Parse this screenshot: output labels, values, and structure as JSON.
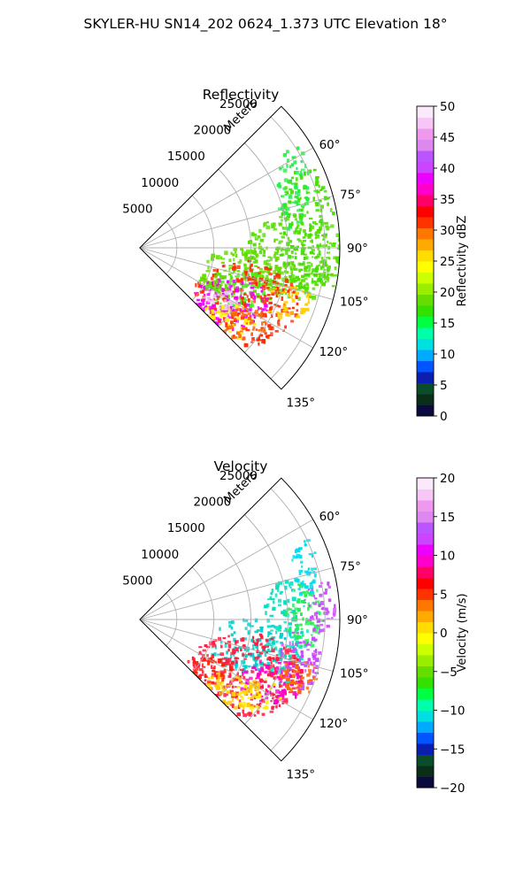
{
  "figure": {
    "suptitle": "SKYLER-HU  SN14_202  0624_1.373 UTC Elevation 18°"
  },
  "chart_data": [
    {
      "type": "polar-sector",
      "title": "Reflectivity",
      "radial_label": "Meters",
      "radial_ticks": [
        5000,
        10000,
        15000,
        20000,
        25000
      ],
      "radial_tick_labels": [
        "5000",
        "10000",
        "15000",
        "20000",
        "25000"
      ],
      "r_max": 27000,
      "theta_range_deg": [
        45,
        135
      ],
      "theta_ticks": [
        "60°",
        "75°",
        "90°",
        "105°",
        "120°",
        "135°"
      ],
      "grid": true,
      "colorbar": {
        "label": "Reflectivity dBZ",
        "range": [
          0,
          50
        ],
        "ticks": [
          "0",
          "5",
          "10",
          "15",
          "20",
          "25",
          "30",
          "35",
          "40",
          "45",
          "50"
        ],
        "colors": [
          "#0a0a3c",
          "#0b2e18",
          "#0a4d2a",
          "#0a1fb0",
          "#0055ff",
          "#00aaff",
          "#00e0e0",
          "#00ffaa",
          "#00ff40",
          "#33e000",
          "#66dd00",
          "#99ee00",
          "#ccff00",
          "#ffff00",
          "#ffdd00",
          "#ffaa00",
          "#ff7700",
          "#ff3300",
          "#ff0000",
          "#ff0066",
          "#ff00cc",
          "#ee00ff",
          "#cc44ff",
          "#bb55ff",
          "#dd88ee",
          "#ee99ee",
          "#f6c6f6",
          "#fbe8fb"
        ]
      }
    },
    {
      "type": "polar-sector",
      "title": "Velocity",
      "radial_label": "Meters",
      "radial_ticks": [
        5000,
        10000,
        15000,
        20000,
        25000
      ],
      "radial_tick_labels": [
        "5000",
        "10000",
        "15000",
        "20000",
        "25000"
      ],
      "r_max": 27000,
      "theta_range_deg": [
        45,
        135
      ],
      "theta_ticks": [
        "60°",
        "75°",
        "90°",
        "105°",
        "120°",
        "135°"
      ],
      "grid": true,
      "colorbar": {
        "label": "Velocity (m/s)",
        "range": [
          -20,
          20
        ],
        "ticks": [
          "−20",
          "−15",
          "−10",
          "−5",
          "0",
          "5",
          "10",
          "15",
          "20"
        ],
        "colors": [
          "#0a0a3c",
          "#0b2e18",
          "#0a4d2a",
          "#0a1fb0",
          "#0055ff",
          "#00aaff",
          "#00e0e0",
          "#00ffaa",
          "#00ff40",
          "#33e000",
          "#66dd00",
          "#99ee00",
          "#ccff00",
          "#ffff00",
          "#ffdd00",
          "#ffaa00",
          "#ff7700",
          "#ff3300",
          "#ff0000",
          "#ff0066",
          "#ff00cc",
          "#ee00ff",
          "#cc44ff",
          "#bb55ff",
          "#dd88ee",
          "#ee99ee",
          "#f6c6f6",
          "#fbe8fb"
        ]
      }
    }
  ]
}
